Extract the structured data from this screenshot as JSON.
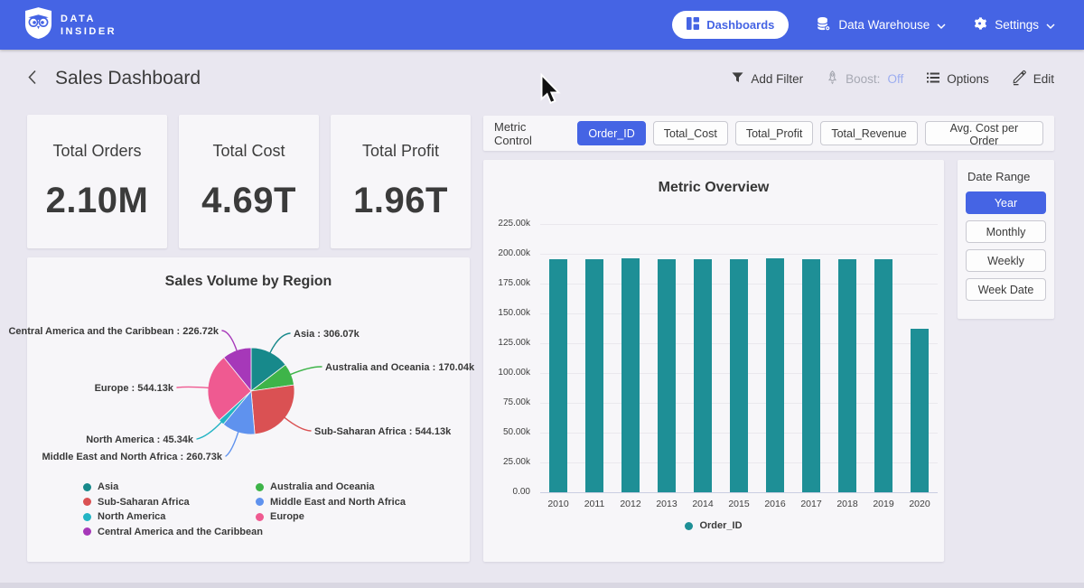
{
  "brand": {
    "line1": "DATA",
    "line2": "INSIDER"
  },
  "nav": {
    "dashboards": "Dashboards",
    "data_warehouse": "Data Warehouse",
    "settings": "Settings"
  },
  "header": {
    "title": "Sales Dashboard",
    "add_filter": "Add Filter",
    "boost_prefix": "Boost:",
    "boost_value": "Off",
    "options": "Options",
    "edit": "Edit"
  },
  "kpis": [
    {
      "label": "Total Orders",
      "value": "2.10M"
    },
    {
      "label": "Total Cost",
      "value": "4.69T"
    },
    {
      "label": "Total Profit",
      "value": "1.96T"
    }
  ],
  "metric_control": {
    "label": "Metric Control",
    "options": [
      "Order_ID",
      "Total_Cost",
      "Total_Profit",
      "Total_Revenue",
      "Avg. Cost per Order"
    ],
    "selected": "Order_ID"
  },
  "date_range": {
    "label": "Date Range",
    "options": [
      "Year",
      "Monthly",
      "Weekly",
      "Week Date"
    ],
    "selected": "Year"
  },
  "chart_data": [
    {
      "type": "bar",
      "title": "Metric Overview",
      "categories": [
        "2010",
        "2011",
        "2012",
        "2013",
        "2014",
        "2015",
        "2016",
        "2017",
        "2018",
        "2019",
        "2020"
      ],
      "series": [
        {
          "name": "Order_ID",
          "color": "#1e8f96",
          "values": [
            195.5,
            195.5,
            196.5,
            195.3,
            195.2,
            195.3,
            196.4,
            195.4,
            195.3,
            195.4,
            137.0
          ]
        }
      ],
      "value_unit": "k",
      "ylim": [
        0,
        225
      ],
      "yticks": [
        "225.00k",
        "200.00k",
        "175.00k",
        "150.00k",
        "125.00k",
        "100.00k",
        "75.00k",
        "50.00k",
        "25.00k",
        "0.00"
      ],
      "grid": true,
      "legend_position": "bottom"
    },
    {
      "type": "pie",
      "title": "Sales Volume by Region",
      "slices": [
        {
          "label": "Asia",
          "value": 306.07,
          "display": "306.07k",
          "color": "#17898b"
        },
        {
          "label": "Australia and Oceania",
          "value": 170.04,
          "display": "170.04k",
          "color": "#3eb449"
        },
        {
          "label": "Sub-Saharan Africa",
          "value": 544.13,
          "display": "544.13k",
          "color": "#da5153"
        },
        {
          "label": "Middle East and North Africa",
          "value": 260.73,
          "display": "260.73k",
          "color": "#5f92ee"
        },
        {
          "label": "North America",
          "value": 45.34,
          "display": "45.34k",
          "color": "#23b4c4"
        },
        {
          "label": "Europe",
          "value": 544.13,
          "display": "544.13k",
          "color": "#ef5a91"
        },
        {
          "label": "Central America and the Caribbean",
          "value": 226.72,
          "display": "226.72k",
          "color": "#a638b9"
        }
      ],
      "legend_columns": [
        [
          "Asia",
          "Sub-Saharan Africa",
          "North America",
          "Central America and the Caribbean"
        ],
        [
          "Australia and Oceania",
          "Middle East and North Africa",
          "Europe"
        ]
      ]
    }
  ],
  "colors": {
    "accent": "#4564e4",
    "bar": "#1e8f96",
    "page_bg": "#e9e7f0",
    "card_bg": "#f7f6f9"
  }
}
